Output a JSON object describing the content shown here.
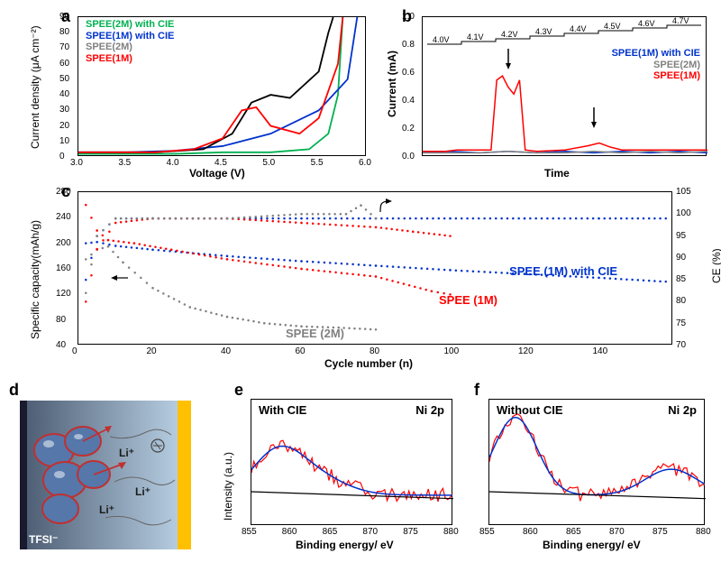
{
  "panel_a": {
    "label": "a",
    "xlabel": "Voltage (V)",
    "ylabel": "Current density (μA cm⁻²)",
    "xlim": [
      3.0,
      6.0
    ],
    "ylim": [
      0,
      90
    ],
    "xticks": [
      3.0,
      3.5,
      4.0,
      4.5,
      5.0,
      5.5,
      6.0
    ],
    "yticks": [
      0,
      10,
      20,
      30,
      40,
      50,
      60,
      70,
      80,
      90
    ],
    "label_fontsize": 12,
    "tick_fontsize": 10,
    "bg_color": "#ffffff",
    "border_color": "#000000",
    "line_width": 1.8,
    "legend": [
      {
        "label": "SPEE(2M) with CIE",
        "color": "#00b050"
      },
      {
        "label": "SPEE(1M) with CIE",
        "color": "#0033cc"
      },
      {
        "label": "SPEE(2M)",
        "color": "#808080"
      },
      {
        "label": "SPEE(1M)",
        "color": "#ff0000"
      }
    ],
    "series": [
      {
        "color": "#00b050",
        "points": [
          [
            3.0,
            2
          ],
          [
            4.0,
            2
          ],
          [
            4.5,
            3
          ],
          [
            5.0,
            3
          ],
          [
            5.4,
            5
          ],
          [
            5.6,
            15
          ],
          [
            5.7,
            40
          ],
          [
            5.75,
            90
          ]
        ]
      },
      {
        "color": "#0033cc",
        "points": [
          [
            3.0,
            3
          ],
          [
            3.5,
            3
          ],
          [
            4.0,
            4
          ],
          [
            4.5,
            7
          ],
          [
            5.0,
            15
          ],
          [
            5.5,
            30
          ],
          [
            5.8,
            50
          ],
          [
            5.9,
            90
          ]
        ]
      },
      {
        "color": "#000000",
        "points": [
          [
            3.0,
            3
          ],
          [
            3.8,
            3
          ],
          [
            4.3,
            5
          ],
          [
            4.6,
            15
          ],
          [
            4.8,
            35
          ],
          [
            5.0,
            40
          ],
          [
            5.2,
            38
          ],
          [
            5.5,
            55
          ],
          [
            5.6,
            80
          ],
          [
            5.65,
            90
          ]
        ]
      },
      {
        "color": "#ff0000",
        "points": [
          [
            3.0,
            3
          ],
          [
            3.8,
            3
          ],
          [
            4.2,
            5
          ],
          [
            4.5,
            12
          ],
          [
            4.7,
            30
          ],
          [
            4.85,
            32
          ],
          [
            5.0,
            20
          ],
          [
            5.3,
            15
          ],
          [
            5.5,
            25
          ],
          [
            5.7,
            60
          ],
          [
            5.75,
            90
          ]
        ]
      }
    ]
  },
  "panel_b": {
    "label": "b",
    "xlabel": "Time",
    "ylabel": "Current (mA)",
    "ylim": [
      0,
      1.0
    ],
    "yticks": [
      0.0,
      0.2,
      0.4,
      0.6,
      0.8,
      1.0
    ],
    "voltage_steps": [
      "4.0V",
      "4.1V",
      "4.2V",
      "4.3V",
      "4.4V",
      "4.5V",
      "4.6V",
      "4.7V"
    ],
    "label_fontsize": 12,
    "tick_fontsize": 10,
    "step_fontsize": 9,
    "bg_color": "#ffffff",
    "line_width": 1.5,
    "legend": [
      {
        "label": "SPEE(1M) with CIE",
        "color": "#0033cc"
      },
      {
        "label": "SPEE(2M)",
        "color": "#808080"
      },
      {
        "label": "SPEE(1M)",
        "color": "#ff0000"
      }
    ],
    "series": [
      {
        "color": "#0033cc",
        "points": [
          [
            0,
            0.03
          ],
          [
            10,
            0.04
          ],
          [
            20,
            0.03
          ],
          [
            30,
            0.04
          ],
          [
            40,
            0.03
          ],
          [
            50,
            0.04
          ],
          [
            60,
            0.03
          ],
          [
            70,
            0.04
          ],
          [
            80,
            0.03
          ],
          [
            90,
            0.04
          ],
          [
            100,
            0.03
          ]
        ]
      },
      {
        "color": "#808080",
        "points": [
          [
            0,
            0.03
          ],
          [
            10,
            0.03
          ],
          [
            20,
            0.03
          ],
          [
            30,
            0.04
          ],
          [
            40,
            0.03
          ],
          [
            50,
            0.03
          ],
          [
            60,
            0.04
          ],
          [
            70,
            0.03
          ],
          [
            80,
            0.04
          ],
          [
            90,
            0.03
          ],
          [
            100,
            0.04
          ]
        ]
      },
      {
        "color": "#ff0000",
        "points": [
          [
            0,
            0.04
          ],
          [
            8,
            0.04
          ],
          [
            12,
            0.05
          ],
          [
            22,
            0.05
          ],
          [
            24,
            0.05
          ],
          [
            26,
            0.55
          ],
          [
            28,
            0.58
          ],
          [
            30,
            0.5
          ],
          [
            32,
            0.45
          ],
          [
            34,
            0.55
          ],
          [
            36,
            0.05
          ],
          [
            40,
            0.04
          ],
          [
            50,
            0.05
          ],
          [
            58,
            0.08
          ],
          [
            62,
            0.1
          ],
          [
            66,
            0.07
          ],
          [
            70,
            0.05
          ],
          [
            80,
            0.05
          ],
          [
            90,
            0.05
          ],
          [
            100,
            0.05
          ]
        ]
      }
    ]
  },
  "panel_c": {
    "label": "c",
    "xlabel": "Cycle number (n)",
    "ylabel_left": "Specific capacity(mAh/g)",
    "ylabel_right": "CE (%)",
    "xlim": [
      0,
      160
    ],
    "ylim_left": [
      40,
      280
    ],
    "ylim_right": [
      70,
      105
    ],
    "xticks": [
      0,
      20,
      40,
      60,
      80,
      100,
      120,
      140
    ],
    "yticks_left": [
      40,
      80,
      120,
      160,
      200,
      240,
      280
    ],
    "yticks_right": [
      70,
      75,
      80,
      85,
      90,
      95,
      100,
      105
    ],
    "label_fontsize": 12,
    "marker_size": 2.5,
    "marker_style": "circle",
    "labels": [
      {
        "text": "SPEE (1M) with CIE",
        "color": "#0033cc"
      },
      {
        "text": "SPEE (1M)",
        "color": "#ff0000"
      },
      {
        "text": "SPEE (2M)",
        "color": "#808080"
      }
    ],
    "series": [
      {
        "color": "#0033cc",
        "type": "capacity",
        "points": [
          [
            2,
            200
          ],
          [
            5,
            202
          ],
          [
            10,
            196
          ],
          [
            20,
            190
          ],
          [
            40,
            180
          ],
          [
            60,
            172
          ],
          [
            80,
            165
          ],
          [
            100,
            158
          ],
          [
            120,
            152
          ],
          [
            140,
            146
          ],
          [
            158,
            140
          ]
        ]
      },
      {
        "color": "#ff0000",
        "type": "capacity",
        "points": [
          [
            2,
            260
          ],
          [
            5,
            220
          ],
          [
            8,
            205
          ],
          [
            15,
            200
          ],
          [
            25,
            190
          ],
          [
            40,
            175
          ],
          [
            60,
            160
          ],
          [
            80,
            148
          ],
          [
            95,
            125
          ],
          [
            100,
            120
          ]
        ]
      },
      {
        "color": "#808080",
        "type": "capacity",
        "points": [
          [
            2,
            175
          ],
          [
            5,
            190
          ],
          [
            8,
            195
          ],
          [
            12,
            170
          ],
          [
            20,
            130
          ],
          [
            30,
            100
          ],
          [
            40,
            85
          ],
          [
            50,
            75
          ],
          [
            60,
            70
          ],
          [
            70,
            68
          ],
          [
            80,
            65
          ]
        ]
      },
      {
        "color": "#0033cc",
        "type": "ce",
        "points": [
          [
            2,
            85
          ],
          [
            5,
            95
          ],
          [
            10,
            99
          ],
          [
            20,
            99
          ],
          [
            40,
            99
          ],
          [
            60,
            99
          ],
          [
            80,
            99
          ],
          [
            100,
            99
          ],
          [
            120,
            99
          ],
          [
            140,
            99
          ],
          [
            158,
            99
          ]
        ]
      },
      {
        "color": "#ff0000",
        "type": "ce",
        "points": [
          [
            2,
            80
          ],
          [
            5,
            92
          ],
          [
            10,
            98
          ],
          [
            20,
            99
          ],
          [
            40,
            99
          ],
          [
            60,
            98
          ],
          [
            80,
            97
          ],
          [
            90,
            96
          ],
          [
            100,
            95
          ]
        ]
      },
      {
        "color": "#808080",
        "type": "ce",
        "points": [
          [
            2,
            82
          ],
          [
            5,
            95
          ],
          [
            10,
            99
          ],
          [
            20,
            99
          ],
          [
            40,
            99
          ],
          [
            60,
            100
          ],
          [
            72,
            100
          ],
          [
            76,
            102
          ],
          [
            80,
            99
          ]
        ]
      }
    ]
  },
  "panel_d": {
    "label": "d",
    "bg_gradient": [
      "#6b7d95",
      "#a8bfd4"
    ],
    "right_bar_color": "#ffc000",
    "particle_fill": "#5577aa",
    "particle_stroke": "#c03030",
    "ion_labels": [
      "Li⁺",
      "Li⁺",
      "Li⁺",
      "TFSI⁻"
    ],
    "ion_color": "#202020",
    "ion_fontsize": 10
  },
  "panel_e": {
    "label": "e",
    "title": "With CIE",
    "peak_label": "Ni 2p",
    "xlabel": "Binding energy/ eV",
    "ylabel": "Intensity (a.u.)",
    "xlim": [
      855,
      880
    ],
    "xticks": [
      855,
      860,
      865,
      870,
      875,
      880
    ],
    "data_color": "#ff0000",
    "fit_color": "#0033cc",
    "baseline_color": "#000000",
    "label_fontsize": 11
  },
  "panel_f": {
    "label": "f",
    "title": "Without CIE",
    "peak_label": "Ni 2p",
    "xlabel": "Binding energy/ eV",
    "xlim": [
      855,
      880
    ],
    "xticks": [
      855,
      860,
      865,
      870,
      875,
      880
    ],
    "data_color": "#ff0000",
    "fit_color": "#0033cc",
    "baseline_color": "#000000",
    "label_fontsize": 11
  }
}
